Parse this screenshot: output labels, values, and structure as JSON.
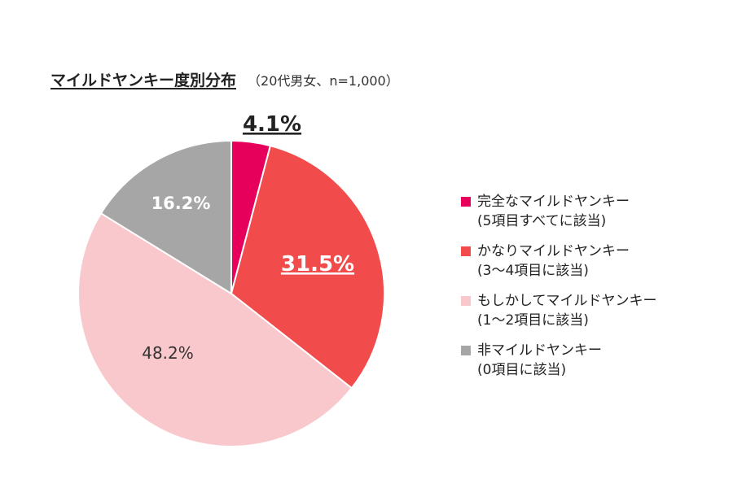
{
  "chart_data": {
    "type": "pie",
    "title": "マイルドヤンキー度別分布",
    "subtitle": "（20代男女、n=1,000）",
    "slices": [
      {
        "label": "完全なマイルドヤンキー",
        "sublabel": "(5項目すべてに該当)",
        "value": 4.1,
        "value_label": "4.1%",
        "color": "#e6005c"
      },
      {
        "label": "かなりマイルドヤンキー",
        "sublabel": "(3～4項目に該当)",
        "value": 31.5,
        "value_label": "31.5%",
        "color": "#f24b4b"
      },
      {
        "label": "もしかしてマイルドヤンキー",
        "sublabel": "(1～2項目に該当)",
        "value": 48.2,
        "value_label": "48.2%",
        "color": "#f9c8cc"
      },
      {
        "label": "非マイルドヤンキー",
        "sublabel": "(0項目に該当)",
        "value": 16.2,
        "value_label": "16.2%",
        "color": "#a6a6a6"
      }
    ],
    "legend_position": "right"
  }
}
